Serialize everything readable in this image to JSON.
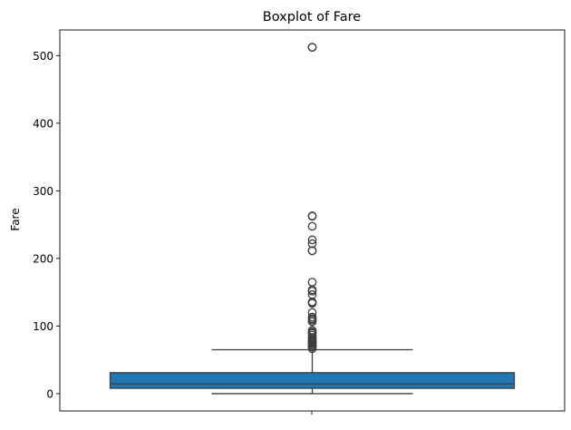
{
  "chart_data": {
    "type": "boxplot",
    "title": "Boxplot of Fare",
    "xlabel": "",
    "ylabel": "Fare",
    "ylim": [
      -25.6,
      538
    ],
    "yticks": [
      0,
      100,
      200,
      300,
      400,
      500
    ],
    "grid": false,
    "box": {
      "min": 0,
      "q1": 7.9,
      "median": 14.45,
      "q3": 31,
      "max": 65,
      "color": "#1f77b4"
    },
    "outliers": [
      512.3,
      512.3,
      263,
      262.4,
      247.5,
      227.5,
      221.8,
      211.5,
      211.3,
      164.9,
      153.5,
      151.6,
      146.5,
      135.6,
      134.5,
      133.7,
      120,
      113.3,
      110.9,
      108.9,
      106.4,
      93.5,
      91.1,
      90,
      89.1,
      86.5,
      83.2,
      82.2,
      79.7,
      78.3,
      77.9,
      76.7,
      75.3,
      73.5,
      71.3,
      69.6,
      69.3,
      66.6
    ]
  }
}
